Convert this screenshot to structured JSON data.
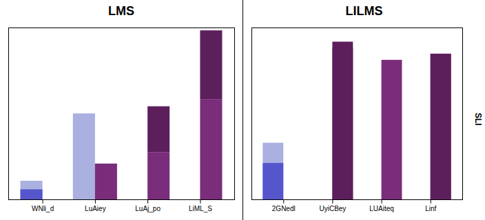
{
  "chart_data": [
    {
      "type": "bar",
      "title": "LMS",
      "categories": [
        "WNli_d",
        "LuAiey",
        "LuAj_po",
        "LiML_S"
      ],
      "series": [
        {
          "color": "#aab0e0",
          "values": [
            0.13,
            0.6,
            0.0,
            0.0
          ]
        },
        {
          "color": "#5555cc",
          "values": [
            0.07,
            0.0,
            0.0,
            0.0
          ]
        },
        {
          "color": "#7a2d7a",
          "values": [
            0.0,
            0.25,
            0.33,
            0.7
          ]
        },
        {
          "color": "#5c1f5c",
          "values": [
            0.0,
            0.0,
            0.32,
            0.48
          ]
        }
      ],
      "ylim": [
        0,
        1.2
      ],
      "stacked": true,
      "tick_labels": "x"
    },
    {
      "type": "bar",
      "title": "LILMS",
      "ylabel": "SLI",
      "categories": [
        "2GNedl",
        "UyiCBey",
        "LUAiteq",
        "Linf"
      ],
      "series": [
        {
          "color": "#aab0e0",
          "values": [
            0.28,
            0.0,
            0.0,
            0.0
          ]
        },
        {
          "color": "#5555cc",
          "values": [
            0.18,
            0.0,
            0.0,
            0.0
          ]
        },
        {
          "color": "#7a2d7a",
          "values": [
            0.0,
            0.75,
            0.69,
            0.72
          ]
        },
        {
          "color": "#5c1f5c",
          "values": [
            0.0,
            0.78,
            0.0,
            0.72
          ]
        }
      ],
      "ylim": [
        0,
        0.85
      ],
      "stacked": false,
      "tick_labels": "x"
    }
  ]
}
